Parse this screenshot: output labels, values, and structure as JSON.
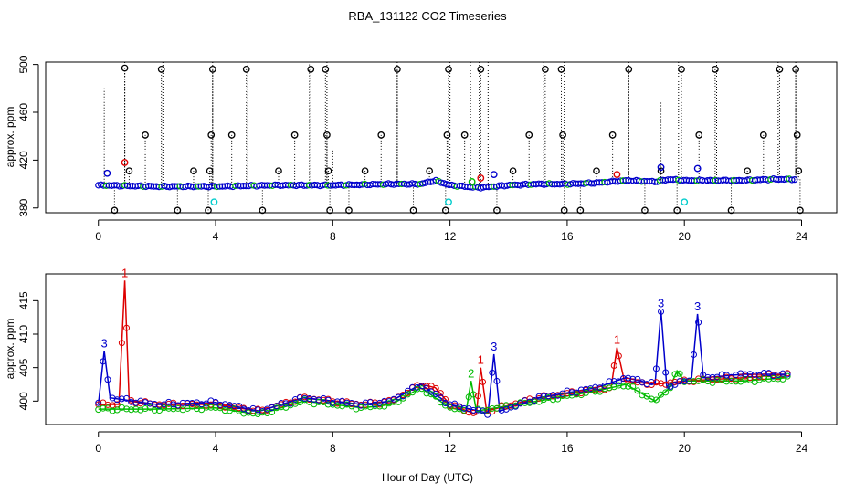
{
  "title": "RBA_131122  CO2 Timeseries",
  "xlabel": "Hour of Day (UTC)",
  "colors": {
    "black": "#000000",
    "red": "#dd0000",
    "green": "#00bb00",
    "blue": "#0000cc",
    "cyan": "#00cccc"
  },
  "chart_data": [
    {
      "type": "scatter",
      "panel": "top",
      "ylabel": "approx. ppm",
      "xlim": [
        -1.8,
        25.2
      ],
      "ylim": [
        376,
        502
      ],
      "xticks": [
        0,
        4,
        8,
        12,
        16,
        20,
        24
      ],
      "xtick_labels": [
        "0",
        "4",
        "8",
        "12",
        "16",
        "20",
        "24"
      ],
      "yticks": [
        380,
        420,
        460,
        500
      ],
      "ytick_labels": [
        "380",
        "420",
        "460",
        "500"
      ],
      "baseline": [
        [
          0,
          399
        ],
        [
          2,
          398
        ],
        [
          4,
          398
        ],
        [
          6,
          399
        ],
        [
          8,
          399
        ],
        [
          10,
          400
        ],
        [
          11,
          400
        ],
        [
          11.5,
          403
        ],
        [
          12,
          399
        ],
        [
          13,
          397
        ],
        [
          14,
          399
        ],
        [
          15,
          400
        ],
        [
          16,
          400
        ],
        [
          17,
          401
        ],
        [
          18,
          403
        ],
        [
          19,
          402
        ],
        [
          19.5,
          404
        ],
        [
          20,
          403
        ],
        [
          21,
          403
        ],
        [
          22,
          403
        ],
        [
          23,
          404
        ],
        [
          23.8,
          404
        ]
      ],
      "outliers": [
        {
          "x": 0.55,
          "y": 378
        },
        {
          "x": 0.9,
          "y": 497
        },
        {
          "x": 1.05,
          "y": 411
        },
        {
          "x": 1.6,
          "y": 441
        },
        {
          "x": 2.15,
          "y": 496
        },
        {
          "x": 2.7,
          "y": 378
        },
        {
          "x": 3.25,
          "y": 411
        },
        {
          "x": 3.75,
          "y": 378
        },
        {
          "x": 3.8,
          "y": 411
        },
        {
          "x": 3.85,
          "y": 441
        },
        {
          "x": 3.9,
          "y": 496
        },
        {
          "x": 4.55,
          "y": 441
        },
        {
          "x": 5.05,
          "y": 496
        },
        {
          "x": 5.6,
          "y": 378
        },
        {
          "x": 6.15,
          "y": 411
        },
        {
          "x": 6.7,
          "y": 441
        },
        {
          "x": 7.25,
          "y": 496
        },
        {
          "x": 7.75,
          "y": 496
        },
        {
          "x": 7.8,
          "y": 441
        },
        {
          "x": 7.85,
          "y": 411
        },
        {
          "x": 7.9,
          "y": 378
        },
        {
          "x": 8.55,
          "y": 378
        },
        {
          "x": 9.1,
          "y": 411
        },
        {
          "x": 9.65,
          "y": 441
        },
        {
          "x": 10.2,
          "y": 496
        },
        {
          "x": 10.75,
          "y": 378
        },
        {
          "x": 11.3,
          "y": 411
        },
        {
          "x": 11.85,
          "y": 378
        },
        {
          "x": 11.9,
          "y": 441
        },
        {
          "x": 11.95,
          "y": 496
        },
        {
          "x": 12.5,
          "y": 441
        },
        {
          "x": 13.05,
          "y": 496
        },
        {
          "x": 13.6,
          "y": 378
        },
        {
          "x": 14.15,
          "y": 411
        },
        {
          "x": 14.7,
          "y": 441
        },
        {
          "x": 15.25,
          "y": 496
        },
        {
          "x": 15.8,
          "y": 496
        },
        {
          "x": 15.85,
          "y": 441
        },
        {
          "x": 15.9,
          "y": 378
        },
        {
          "x": 16.45,
          "y": 378
        },
        {
          "x": 17.0,
          "y": 411
        },
        {
          "x": 17.55,
          "y": 441
        },
        {
          "x": 18.1,
          "y": 496
        },
        {
          "x": 18.65,
          "y": 378
        },
        {
          "x": 19.2,
          "y": 411
        },
        {
          "x": 19.75,
          "y": 378
        },
        {
          "x": 19.9,
          "y": 496
        },
        {
          "x": 20.5,
          "y": 441
        },
        {
          "x": 21.05,
          "y": 496
        },
        {
          "x": 21.6,
          "y": 378
        },
        {
          "x": 22.15,
          "y": 411
        },
        {
          "x": 22.7,
          "y": 441
        },
        {
          "x": 23.25,
          "y": 496
        },
        {
          "x": 23.8,
          "y": 496
        },
        {
          "x": 23.85,
          "y": 441
        },
        {
          "x": 23.9,
          "y": 411
        },
        {
          "x": 23.95,
          "y": 378
        }
      ],
      "colored_points": [
        {
          "x": 0.3,
          "y": 409,
          "color": "blue"
        },
        {
          "x": 0.9,
          "y": 418,
          "color": "red"
        },
        {
          "x": 3.95,
          "y": 385,
          "color": "cyan"
        },
        {
          "x": 11.95,
          "y": 385,
          "color": "cyan"
        },
        {
          "x": 12.75,
          "y": 402,
          "color": "green"
        },
        {
          "x": 13.05,
          "y": 405,
          "color": "red"
        },
        {
          "x": 13.5,
          "y": 408,
          "color": "blue"
        },
        {
          "x": 17.7,
          "y": 408,
          "color": "red"
        },
        {
          "x": 19.2,
          "y": 414,
          "color": "blue"
        },
        {
          "x": 20.0,
          "y": 385,
          "color": "cyan"
        },
        {
          "x": 20.45,
          "y": 413,
          "color": "blue"
        }
      ],
      "dotted_lines": [
        {
          "x": 0.2,
          "y_top": 480
        },
        {
          "x": 0.9,
          "y_top": 502
        },
        {
          "x": 2.2,
          "y_top": 502
        },
        {
          "x": 3.9,
          "y_top": 502
        },
        {
          "x": 5.1,
          "y_top": 502
        },
        {
          "x": 7.2,
          "y_top": 500
        },
        {
          "x": 7.8,
          "y_top": 502
        },
        {
          "x": 8.0,
          "y_top": 428
        },
        {
          "x": 10.2,
          "y_top": 502
        },
        {
          "x": 12.0,
          "y_top": 502
        },
        {
          "x": 12.7,
          "y_top": 502
        },
        {
          "x": 13.0,
          "y_top": 502
        },
        {
          "x": 13.3,
          "y_top": 502
        },
        {
          "x": 15.2,
          "y_top": 502
        },
        {
          "x": 15.9,
          "y_top": 502
        },
        {
          "x": 18.1,
          "y_top": 502
        },
        {
          "x": 19.2,
          "y_top": 468
        },
        {
          "x": 19.8,
          "y_top": 502
        },
        {
          "x": 21.1,
          "y_top": 502
        },
        {
          "x": 23.2,
          "y_top": 502
        },
        {
          "x": 23.8,
          "y_top": 502
        }
      ]
    },
    {
      "type": "line",
      "panel": "bottom",
      "ylabel": "approx. ppm",
      "xlim": [
        -1.8,
        25.2
      ],
      "ylim": [
        396.5,
        419
      ],
      "xticks": [
        0,
        4,
        8,
        12,
        16,
        20,
        24
      ],
      "xtick_labels": [
        "0",
        "4",
        "8",
        "12",
        "16",
        "20",
        "24"
      ],
      "yticks": [
        400,
        405,
        410,
        415
      ],
      "ytick_labels": [
        "400",
        "405",
        "410",
        "415"
      ],
      "series": [
        {
          "name": "1",
          "color": "red",
          "points": [
            [
              0,
              399.5
            ],
            [
              0.7,
              399.5
            ],
            [
              0.9,
              418
            ],
            [
              1.05,
              400
            ],
            [
              2,
              399.5
            ],
            [
              4,
              399.5
            ],
            [
              5.5,
              398.5
            ],
            [
              7,
              400.5
            ],
            [
              8,
              400
            ],
            [
              9,
              399.5
            ],
            [
              10,
              400
            ],
            [
              11,
              402.5
            ],
            [
              11.5,
              402
            ],
            [
              12,
              399.5
            ],
            [
              12.9,
              398
            ],
            [
              13.05,
              405
            ],
            [
              13.25,
              398.5
            ],
            [
              15,
              400.5
            ],
            [
              17.5,
              402
            ],
            [
              17.7,
              408
            ],
            [
              17.95,
              403
            ],
            [
              19,
              402.5
            ],
            [
              20,
              403
            ],
            [
              22,
              403.5
            ],
            [
              23.5,
              404
            ]
          ]
        },
        {
          "name": "2",
          "color": "green",
          "points": [
            [
              0,
              398.8
            ],
            [
              2,
              398.8
            ],
            [
              4,
              399
            ],
            [
              5.5,
              398
            ],
            [
              7,
              400
            ],
            [
              8,
              399.5
            ],
            [
              9,
              399
            ],
            [
              10,
              399.5
            ],
            [
              11,
              402
            ],
            [
              12,
              399
            ],
            [
              12.55,
              398.5
            ],
            [
              12.72,
              403
            ],
            [
              12.9,
              398.5
            ],
            [
              15,
              400
            ],
            [
              17,
              401.5
            ],
            [
              18,
              402.5
            ],
            [
              19,
              400
            ],
            [
              19.5,
              402
            ],
            [
              19.75,
              404.5
            ],
            [
              20,
              403
            ],
            [
              22,
              403
            ],
            [
              23.5,
              403.5
            ]
          ]
        },
        {
          "name": "3",
          "color": "blue",
          "points": [
            [
              0,
              399.5
            ],
            [
              0.2,
              407.5
            ],
            [
              0.4,
              400.5
            ],
            [
              2,
              399.5
            ],
            [
              4,
              399.8
            ],
            [
              5.5,
              398.5
            ],
            [
              7,
              400.5
            ],
            [
              8,
              400
            ],
            [
              9,
              399.5
            ],
            [
              10,
              400
            ],
            [
              11,
              402.5
            ],
            [
              12,
              399.5
            ],
            [
              13.3,
              398.2
            ],
            [
              13.5,
              407
            ],
            [
              13.7,
              398.5
            ],
            [
              15,
              400.5
            ],
            [
              17,
              402
            ],
            [
              18,
              403.5
            ],
            [
              19,
              402.5
            ],
            [
              19.2,
              413.5
            ],
            [
              19.4,
              402
            ],
            [
              20,
              403
            ],
            [
              20.25,
              403.5
            ],
            [
              20.45,
              413
            ],
            [
              20.65,
              403.5
            ],
            [
              22,
              404
            ],
            [
              23.5,
              404
            ]
          ]
        }
      ],
      "markers": [
        {
          "x": 0.2,
          "y": 407.5,
          "label": "3",
          "color": "blue"
        },
        {
          "x": 0.9,
          "y": 418,
          "label": "1",
          "color": "red"
        },
        {
          "x": 12.72,
          "y": 403,
          "label": "2",
          "color": "green"
        },
        {
          "x": 13.05,
          "y": 405,
          "label": "1",
          "color": "red"
        },
        {
          "x": 13.5,
          "y": 407,
          "label": "3",
          "color": "blue"
        },
        {
          "x": 17.7,
          "y": 408,
          "label": "1",
          "color": "red"
        },
        {
          "x": 19.2,
          "y": 413.5,
          "label": "3",
          "color": "blue"
        },
        {
          "x": 20.45,
          "y": 413,
          "label": "3",
          "color": "blue"
        }
      ]
    }
  ]
}
